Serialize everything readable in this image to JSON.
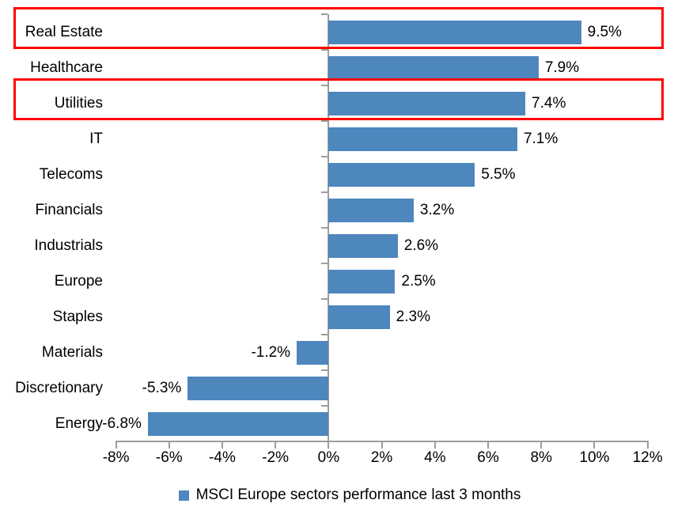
{
  "chart_data": {
    "type": "bar",
    "orientation": "horizontal",
    "title": "",
    "categories": [
      "Real Estate",
      "Healthcare",
      "Utilities",
      "IT",
      "Telecoms",
      "Financials",
      "Industrials",
      "Europe",
      "Staples",
      "Materials",
      "Discretionary",
      "Energy"
    ],
    "values": [
      9.5,
      7.9,
      7.4,
      7.1,
      5.5,
      3.2,
      2.6,
      2.5,
      2.3,
      -1.2,
      -5.3,
      -6.8
    ],
    "data_labels": [
      "9.5%",
      "7.9%",
      "7.4%",
      "7.1%",
      "5.5%",
      "3.2%",
      "2.6%",
      "2.5%",
      "2.3%",
      "-1.2%",
      "-5.3%",
      "-6.8%"
    ],
    "series_name": "MSCI Europe sectors performance last 3 months",
    "x_tick_labels": [
      "-8%",
      "-6%",
      "-4%",
      "-2%",
      "0%",
      "2%",
      "4%",
      "6%",
      "8%",
      "10%",
      "12%"
    ],
    "x_tick_values": [
      -8,
      -6,
      -4,
      -2,
      0,
      2,
      4,
      6,
      8,
      10,
      12
    ],
    "xlim": [
      -8,
      12
    ],
    "grid": false,
    "legend_position": "bottom",
    "highlighted_categories": [
      "Real Estate",
      "Utilities"
    ],
    "highlight_indices": [
      0,
      2
    ],
    "colors": {
      "bar": "#4E86BE",
      "highlight_box": "#FF0000",
      "axis": "#9D9D9D",
      "text": "#000000",
      "background": "#FFFFFF"
    }
  },
  "legend": {
    "label": "MSCI Europe sectors performance last 3 months",
    "swatch_icon": "blue-square-icon"
  }
}
